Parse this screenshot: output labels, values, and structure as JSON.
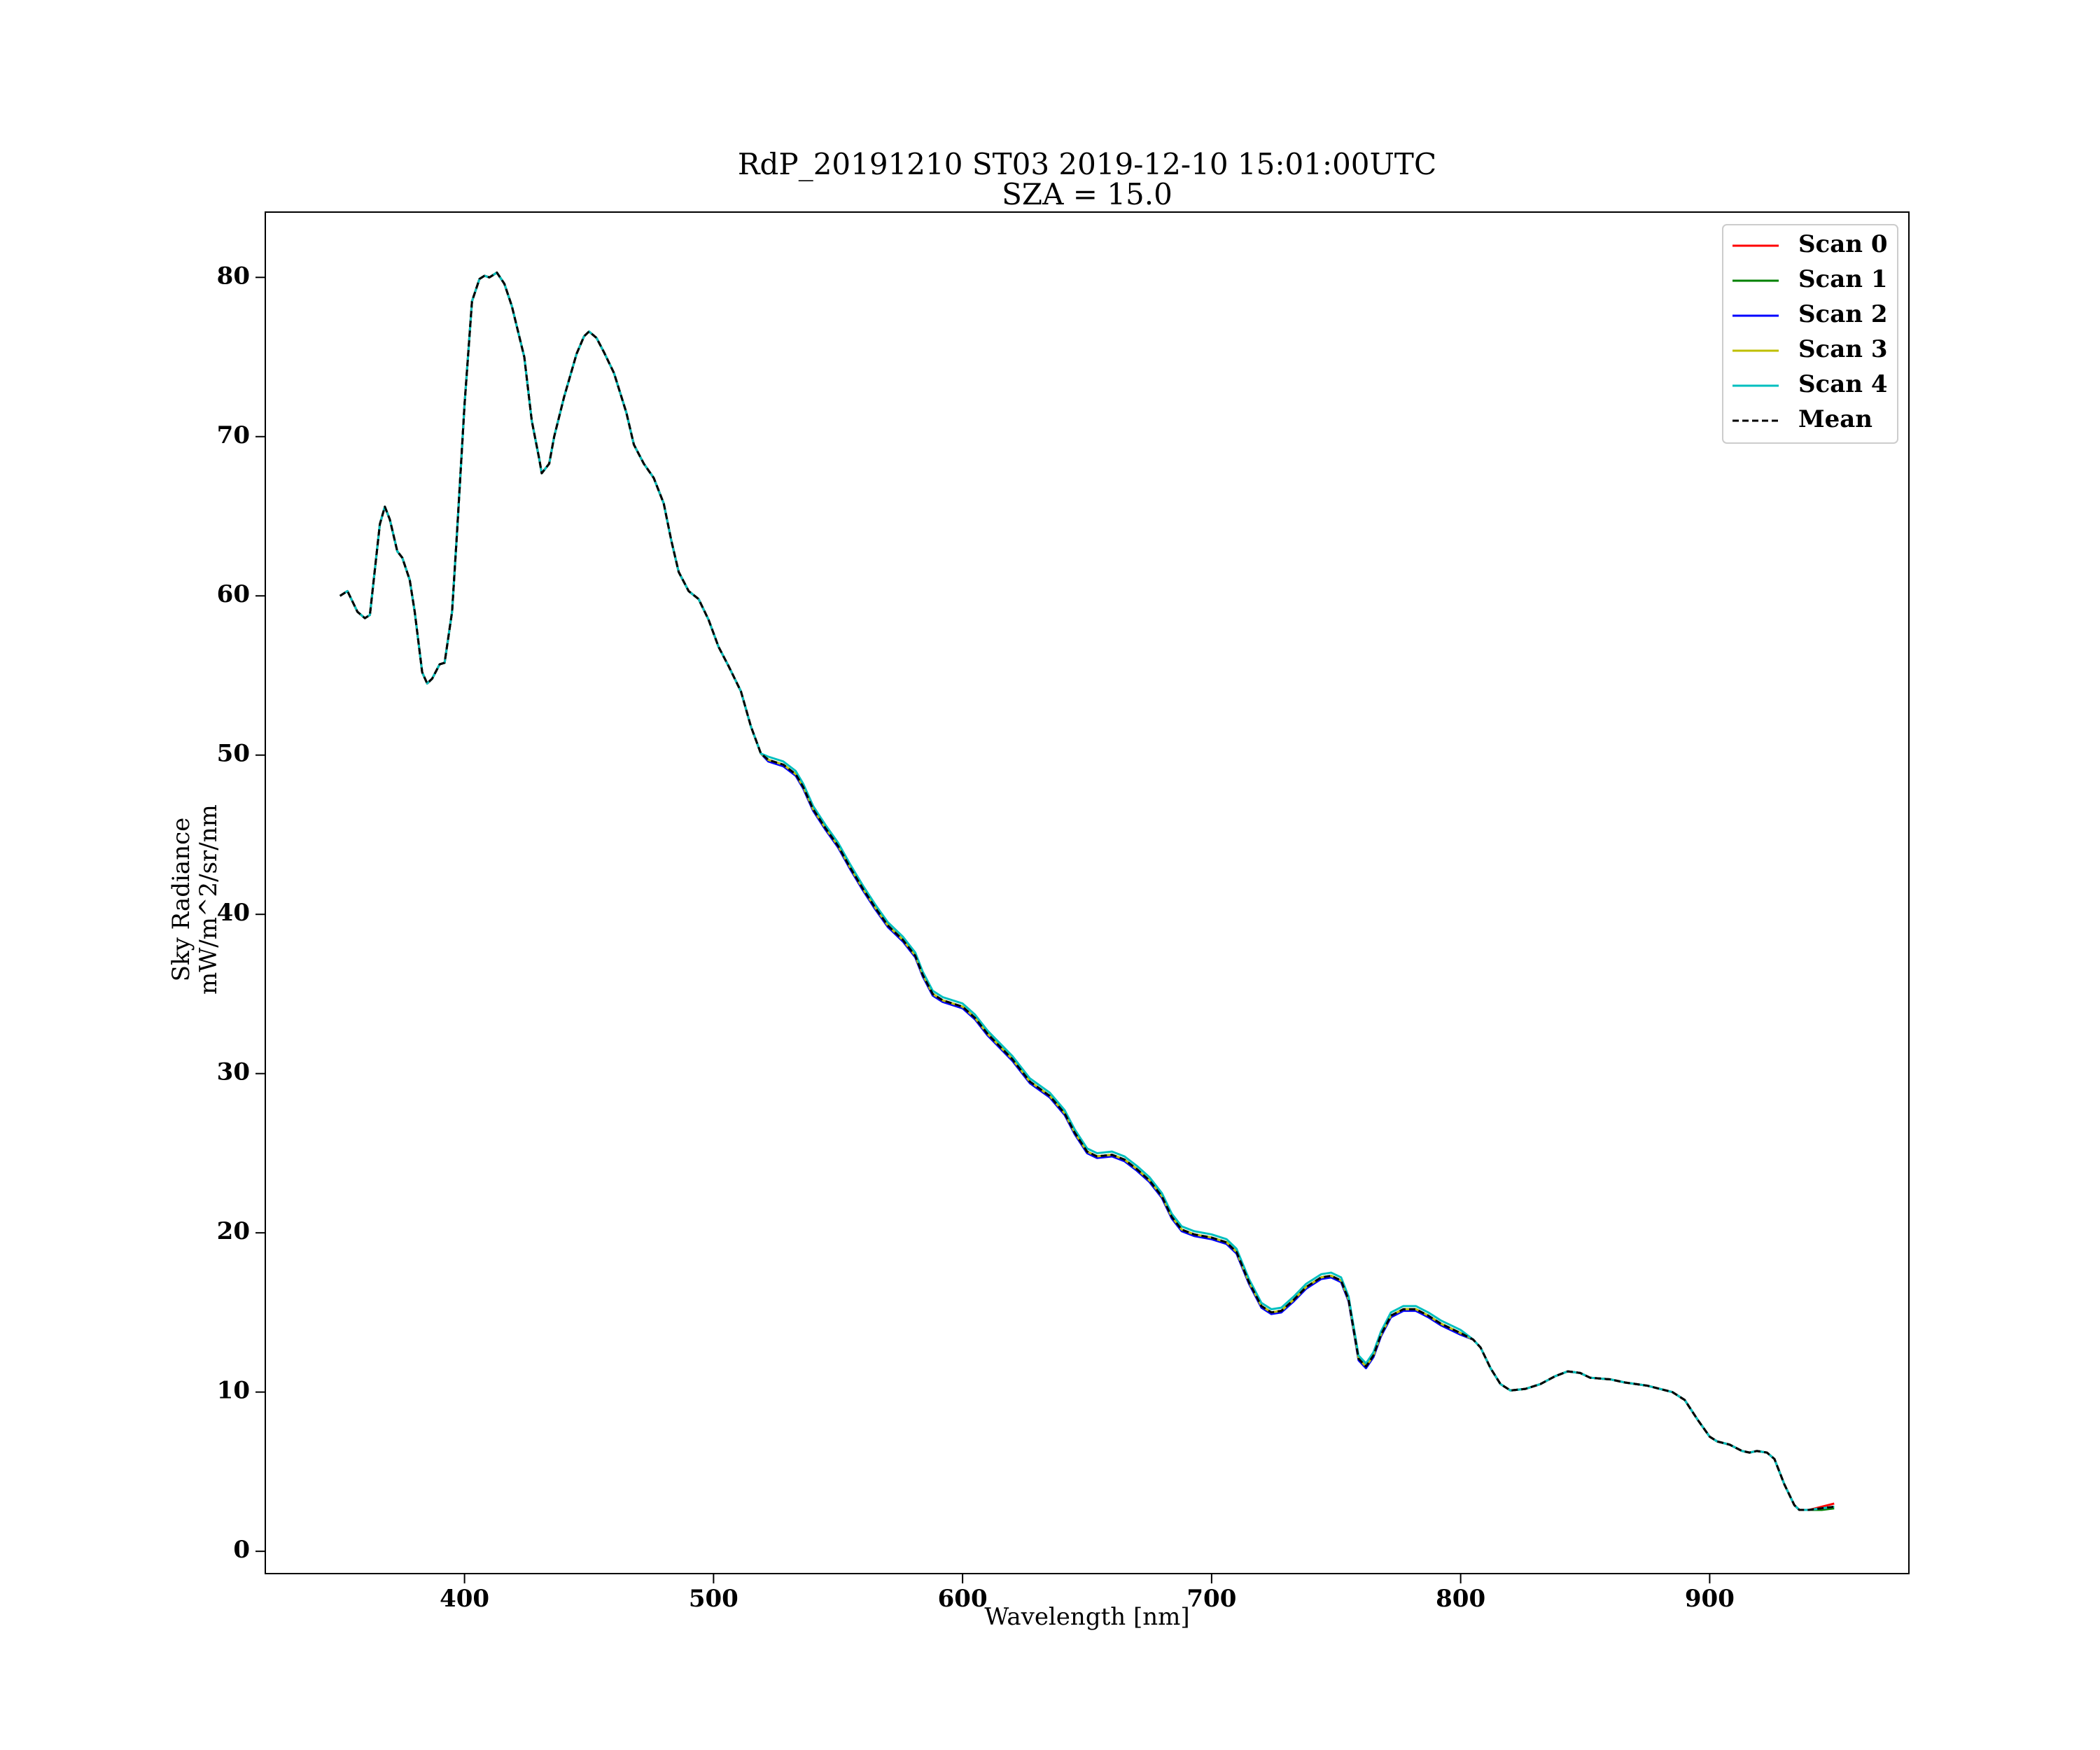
{
  "chart_data": {
    "type": "line",
    "title": "RdP_20191210 ST03 2019-12-10 15:01:00UTC",
    "subtitle": "SZA = 15.0",
    "xlabel": "Wavelength [nm]",
    "ylabel": [
      "Sky Radiance",
      "mW/m^2/sr/nm"
    ],
    "legend": "upper right",
    "xlim": [
      320,
      980
    ],
    "ylim": [
      -1.4,
      84.1
    ],
    "xticks": [
      400,
      500,
      600,
      700,
      800,
      900
    ],
    "yticks": [
      0,
      10,
      20,
      30,
      40,
      50,
      60,
      70,
      80
    ],
    "x": [
      350,
      353,
      357,
      360,
      362,
      366,
      368,
      370,
      373,
      375,
      378,
      380,
      383,
      385,
      387,
      390,
      392,
      395,
      397,
      400,
      403,
      406,
      408,
      410,
      413,
      416,
      419,
      424,
      427,
      430,
      431,
      434,
      436,
      440,
      445,
      448,
      450,
      453,
      456,
      460,
      465,
      468,
      472,
      476,
      480,
      483,
      486,
      490,
      494,
      498,
      502,
      506,
      511,
      515,
      519,
      522,
      528,
      533,
      536,
      540,
      545,
      550,
      555,
      560,
      565,
      570,
      576,
      581,
      584,
      588,
      592,
      600,
      605,
      610,
      620,
      627,
      635,
      641,
      645,
      650,
      654,
      660,
      665,
      670,
      675,
      680,
      684,
      688,
      693,
      700,
      706,
      710,
      715,
      720,
      724,
      728,
      733,
      738,
      744,
      748,
      752,
      755,
      759,
      762,
      765,
      768,
      772,
      777,
      782,
      787,
      792,
      800,
      805,
      808,
      812,
      816,
      820,
      826,
      832,
      838,
      843,
      848,
      852,
      860,
      866,
      875,
      885,
      890,
      895,
      900,
      903,
      908,
      913,
      916,
      919,
      923,
      926,
      930,
      934,
      936,
      940,
      945,
      950
    ],
    "series": [
      {
        "name": "Scan 0",
        "color": "#ff0000",
        "linestyle": "solid",
        "values": [
          60.0,
          60.3,
          59.0,
          58.6,
          58.8,
          64.5,
          65.6,
          64.8,
          62.8,
          62.4,
          61.0,
          59.0,
          55.2,
          54.5,
          54.8,
          55.7,
          55.8,
          59,
          64,
          72,
          78.5,
          79.9,
          80.1,
          80.0,
          80.3,
          79.6,
          78.2,
          75,
          71,
          68.6,
          67.7,
          68.3,
          70,
          72.5,
          75.2,
          76.3,
          76.6,
          76.2,
          75.3,
          74,
          71.5,
          69.5,
          68.3,
          67.4,
          65.8,
          63.5,
          61.5,
          60.3,
          59.8,
          58.5,
          56.8,
          55.6,
          54,
          51.8,
          50.1,
          49.7,
          49.4,
          48.8,
          48.0,
          46.6,
          45.4,
          44.3,
          42.9,
          41.6,
          40.4,
          39.3,
          38.4,
          37.4,
          36.2,
          35.0,
          34.6,
          34.2,
          33.5,
          32.5,
          30.9,
          29.5,
          28.6,
          27.5,
          26.3,
          25.1,
          24.8,
          24.9,
          24.6,
          24.0,
          23.3,
          22.3,
          21.0,
          20.2,
          19.9,
          19.7,
          19.4,
          18.8,
          16.9,
          15.4,
          15.0,
          15.1,
          15.8,
          16.6,
          17.2,
          17.3,
          17.0,
          15.8,
          12.1,
          11.6,
          12.3,
          13.6,
          14.8,
          15.2,
          15.2,
          14.8,
          14.3,
          13.7,
          13.3,
          12.8,
          11.5,
          10.5,
          10.1,
          10.2,
          10.5,
          11.0,
          11.3,
          11.2,
          10.9,
          10.8,
          10.6,
          10.4,
          10.0,
          9.5,
          8.3,
          7.2,
          6.9,
          6.7,
          6.3,
          6.2,
          6.3,
          6.2,
          5.8,
          4.2,
          2.9,
          2.6,
          2.6,
          2.8,
          3.0
        ]
      },
      {
        "name": "Scan 1",
        "color": "#008000",
        "linestyle": "solid",
        "values": [
          60.0,
          60.3,
          59.0,
          58.6,
          58.8,
          64.5,
          65.6,
          64.8,
          62.8,
          62.4,
          61.0,
          59.0,
          55.2,
          54.5,
          54.8,
          55.7,
          55.8,
          59,
          64,
          72,
          78.5,
          79.9,
          80.1,
          80.0,
          80.3,
          79.6,
          78.2,
          75,
          71,
          68.6,
          67.7,
          68.3,
          70,
          72.5,
          75.2,
          76.3,
          76.6,
          76.2,
          75.3,
          74,
          71.5,
          69.5,
          68.3,
          67.4,
          65.8,
          63.5,
          61.5,
          60.3,
          59.8,
          58.5,
          56.8,
          55.6,
          54,
          51.8,
          50.1,
          49.7,
          49.4,
          48.8,
          48.0,
          46.6,
          45.4,
          44.3,
          42.9,
          41.6,
          40.4,
          39.3,
          38.4,
          37.4,
          36.2,
          35.0,
          34.6,
          34.2,
          33.5,
          32.5,
          30.9,
          29.5,
          28.6,
          27.5,
          26.3,
          25.1,
          24.8,
          24.9,
          24.6,
          24.0,
          23.3,
          22.3,
          21.0,
          20.2,
          19.9,
          19.7,
          19.4,
          18.8,
          16.9,
          15.4,
          15.0,
          15.1,
          15.8,
          16.6,
          17.2,
          17.3,
          17.0,
          15.8,
          12.1,
          11.6,
          12.3,
          13.6,
          14.8,
          15.2,
          15.2,
          14.8,
          14.3,
          13.7,
          13.3,
          12.8,
          11.5,
          10.5,
          10.1,
          10.2,
          10.5,
          11.0,
          11.3,
          11.2,
          10.9,
          10.8,
          10.6,
          10.4,
          10.0,
          9.5,
          8.3,
          7.2,
          6.9,
          6.7,
          6.3,
          6.2,
          6.3,
          6.2,
          5.8,
          4.2,
          2.9,
          2.6,
          2.6,
          2.6,
          2.7
        ]
      },
      {
        "name": "Scan 2",
        "color": "#0000ff",
        "linestyle": "solid",
        "values": [
          60.0,
          60.3,
          59.0,
          58.6,
          58.8,
          64.5,
          65.6,
          64.8,
          62.8,
          62.4,
          61.0,
          59.0,
          55.2,
          54.5,
          54.8,
          55.7,
          55.8,
          59,
          64,
          72,
          78.5,
          79.9,
          80.1,
          80.0,
          80.3,
          79.6,
          78.2,
          75,
          71,
          68.6,
          67.7,
          68.3,
          70,
          72.5,
          75.2,
          76.3,
          76.6,
          76.2,
          75.3,
          74,
          71.5,
          69.5,
          68.3,
          67.4,
          65.8,
          63.5,
          61.5,
          60.3,
          59.8,
          58.5,
          56.8,
          55.6,
          54,
          51.8,
          50.1,
          49.6,
          49.3,
          48.7,
          47.9,
          46.5,
          45.3,
          44.2,
          42.8,
          41.5,
          40.3,
          39.2,
          38.3,
          37.3,
          36.1,
          34.9,
          34.5,
          34.1,
          33.4,
          32.4,
          30.8,
          29.4,
          28.5,
          27.4,
          26.2,
          25.0,
          24.7,
          24.8,
          24.5,
          23.9,
          23.2,
          22.2,
          20.9,
          20.1,
          19.8,
          19.6,
          19.3,
          18.7,
          16.8,
          15.3,
          14.9,
          15.0,
          15.7,
          16.5,
          17.1,
          17.2,
          16.9,
          15.7,
          12.0,
          11.5,
          12.2,
          13.5,
          14.7,
          15.1,
          15.1,
          14.7,
          14.2,
          13.6,
          13.3,
          12.8,
          11.5,
          10.5,
          10.1,
          10.2,
          10.5,
          11.0,
          11.3,
          11.2,
          10.9,
          10.8,
          10.6,
          10.4,
          10.0,
          9.5,
          8.3,
          7.2,
          6.9,
          6.7,
          6.3,
          6.2,
          6.3,
          6.2,
          5.8,
          4.2,
          2.9,
          2.6,
          2.6,
          2.7,
          2.8
        ]
      },
      {
        "name": "Scan 3",
        "color": "#bfbf00",
        "linestyle": "solid",
        "values": [
          60.0,
          60.3,
          59.0,
          58.6,
          58.8,
          64.5,
          65.6,
          64.8,
          62.8,
          62.4,
          61.0,
          59.0,
          55.2,
          54.5,
          54.8,
          55.7,
          55.8,
          59,
          64,
          72,
          78.5,
          79.9,
          80.1,
          80.0,
          80.3,
          79.6,
          78.2,
          75,
          71,
          68.6,
          67.7,
          68.3,
          70,
          72.5,
          75.2,
          76.3,
          76.6,
          76.2,
          75.3,
          74,
          71.5,
          69.5,
          68.3,
          67.4,
          65.8,
          63.5,
          61.5,
          60.3,
          59.8,
          58.5,
          56.8,
          55.6,
          54,
          51.8,
          50.1,
          49.7,
          49.4,
          48.8,
          48.0,
          46.6,
          45.4,
          44.3,
          42.9,
          41.6,
          40.4,
          39.3,
          38.4,
          37.4,
          36.2,
          35.0,
          34.6,
          34.2,
          33.5,
          32.5,
          30.9,
          29.5,
          28.6,
          27.5,
          26.3,
          25.1,
          24.8,
          24.9,
          24.6,
          24.0,
          23.3,
          22.3,
          21.0,
          20.2,
          19.9,
          19.7,
          19.4,
          18.8,
          16.9,
          15.4,
          15.0,
          15.1,
          15.8,
          16.6,
          17.2,
          17.3,
          17.0,
          15.8,
          12.1,
          11.6,
          12.3,
          13.6,
          14.8,
          15.2,
          15.2,
          14.8,
          14.3,
          13.7,
          13.3,
          12.8,
          11.5,
          10.5,
          10.1,
          10.2,
          10.5,
          11.0,
          11.3,
          11.2,
          10.9,
          10.8,
          10.6,
          10.4,
          10.0,
          9.5,
          8.3,
          7.2,
          6.9,
          6.7,
          6.3,
          6.2,
          6.3,
          6.2,
          5.8,
          4.2,
          2.9,
          2.6,
          2.6,
          2.7,
          2.8
        ]
      },
      {
        "name": "Scan 4",
        "color": "#00bfbf",
        "linestyle": "solid",
        "values": [
          60.0,
          60.3,
          59.0,
          58.6,
          58.8,
          64.5,
          65.6,
          64.8,
          62.8,
          62.4,
          61.0,
          59.0,
          55.2,
          54.5,
          54.8,
          55.7,
          55.8,
          59,
          64,
          72,
          78.5,
          79.9,
          80.1,
          80.0,
          80.3,
          79.6,
          78.2,
          75,
          71,
          68.6,
          67.7,
          68.3,
          70,
          72.5,
          75.2,
          76.3,
          76.6,
          76.2,
          75.3,
          74,
          71.5,
          69.5,
          68.3,
          67.4,
          65.8,
          63.5,
          61.5,
          60.3,
          59.8,
          58.5,
          56.8,
          55.6,
          54,
          51.8,
          50.1,
          49.9,
          49.6,
          49.0,
          48.2,
          46.8,
          45.6,
          44.5,
          43.1,
          41.8,
          40.6,
          39.5,
          38.6,
          37.6,
          36.4,
          35.2,
          34.8,
          34.4,
          33.7,
          32.7,
          31.1,
          29.7,
          28.8,
          27.7,
          26.5,
          25.3,
          25.0,
          25.1,
          24.8,
          24.2,
          23.5,
          22.5,
          21.2,
          20.4,
          20.1,
          19.9,
          19.6,
          19.0,
          17.1,
          15.6,
          15.2,
          15.3,
          16.0,
          16.8,
          17.4,
          17.5,
          17.2,
          16.0,
          12.3,
          11.8,
          12.5,
          13.8,
          15.0,
          15.4,
          15.4,
          15.0,
          14.5,
          13.9,
          13.3,
          12.8,
          11.5,
          10.5,
          10.1,
          10.2,
          10.5,
          11.0,
          11.3,
          11.2,
          10.9,
          10.8,
          10.6,
          10.4,
          10.0,
          9.5,
          8.3,
          7.2,
          6.9,
          6.7,
          6.3,
          6.2,
          6.3,
          6.2,
          5.8,
          4.2,
          2.9,
          2.6,
          2.6,
          2.7,
          2.8
        ]
      },
      {
        "name": "Mean",
        "color": "#000000",
        "linestyle": "dashed",
        "values": [
          60.0,
          60.3,
          59.0,
          58.6,
          58.8,
          64.5,
          65.6,
          64.8,
          62.8,
          62.4,
          61.0,
          59.0,
          55.2,
          54.5,
          54.8,
          55.7,
          55.8,
          59,
          64,
          72,
          78.5,
          79.9,
          80.1,
          80.0,
          80.3,
          79.6,
          78.2,
          75,
          71,
          68.6,
          67.7,
          68.3,
          70,
          72.5,
          75.2,
          76.3,
          76.6,
          76.2,
          75.3,
          74,
          71.5,
          69.5,
          68.3,
          67.4,
          65.8,
          63.5,
          61.5,
          60.3,
          59.8,
          58.5,
          56.8,
          55.6,
          54,
          51.8,
          50.1,
          49.7,
          49.4,
          48.8,
          48.0,
          46.6,
          45.4,
          44.3,
          42.9,
          41.6,
          40.4,
          39.3,
          38.4,
          37.4,
          36.2,
          35.0,
          34.6,
          34.2,
          33.5,
          32.5,
          30.9,
          29.5,
          28.6,
          27.5,
          26.3,
          25.1,
          24.8,
          24.9,
          24.6,
          24.0,
          23.3,
          22.3,
          21.0,
          20.2,
          19.9,
          19.7,
          19.4,
          18.8,
          16.9,
          15.4,
          15.0,
          15.1,
          15.8,
          16.6,
          17.2,
          17.3,
          17.0,
          15.8,
          12.1,
          11.6,
          12.3,
          13.6,
          14.8,
          15.2,
          15.2,
          14.8,
          14.3,
          13.7,
          13.3,
          12.8,
          11.5,
          10.5,
          10.1,
          10.2,
          10.5,
          11.0,
          11.3,
          11.2,
          10.9,
          10.8,
          10.6,
          10.4,
          10.0,
          9.5,
          8.3,
          7.2,
          6.9,
          6.7,
          6.3,
          6.2,
          6.3,
          6.2,
          5.8,
          4.2,
          2.9,
          2.6,
          2.6,
          2.7,
          2.8
        ]
      }
    ]
  }
}
